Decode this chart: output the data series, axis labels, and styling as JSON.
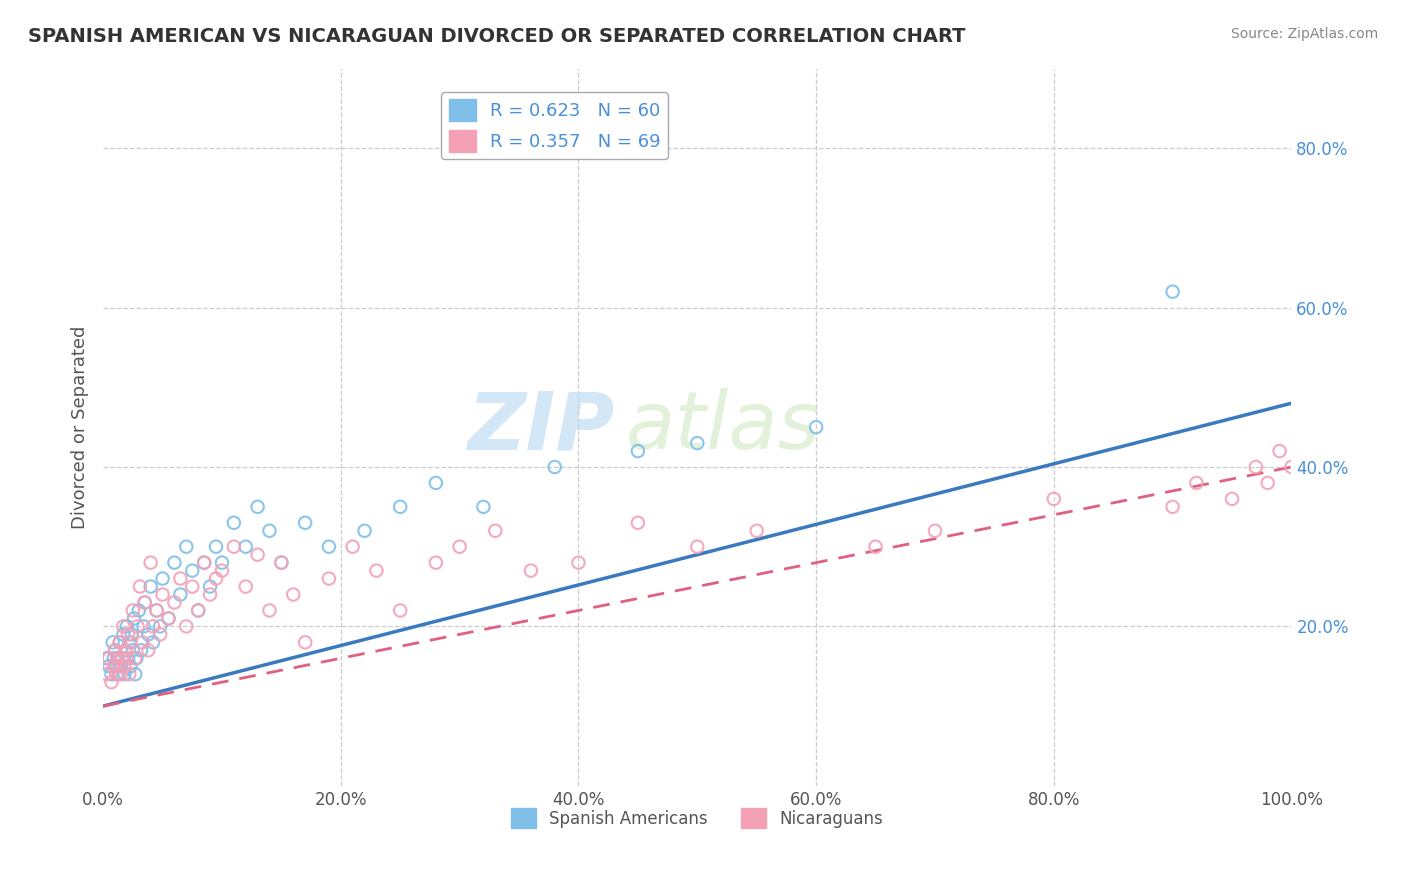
{
  "title": "SPANISH AMERICAN VS NICARAGUAN DIVORCED OR SEPARATED CORRELATION CHART",
  "source_text": "Source: ZipAtlas.com",
  "ylabel": "Divorced or Separated",
  "legend1_label": "R = 0.623   N = 60",
  "legend2_label": "R = 0.357   N = 69",
  "legend_bottom1": "Spanish Americans",
  "legend_bottom2": "Nicaraguans",
  "color_blue": "#7fbfea",
  "color_pink": "#f4a0b5",
  "color_blue_line": "#3a7abf",
  "color_pink_line": "#e06080",
  "watermark_zip": "ZIP",
  "watermark_atlas": "atlas",
  "xlim": [
    0.0,
    1.0
  ],
  "ylim": [
    0.0,
    0.9
  ],
  "xticks": [
    0.0,
    0.2,
    0.4,
    0.6,
    0.8,
    1.0
  ],
  "ytick_vals": [
    0.2,
    0.4,
    0.6,
    0.8
  ],
  "ytick_labels": [
    "20.0%",
    "40.0%",
    "60.0%",
    "80.0%"
  ],
  "blue_intercept": 0.1,
  "blue_slope": 0.38,
  "pink_intercept": 0.1,
  "pink_slope": 0.3,
  "blue_x": [
    0.003,
    0.005,
    0.007,
    0.008,
    0.009,
    0.01,
    0.011,
    0.012,
    0.013,
    0.014,
    0.015,
    0.016,
    0.017,
    0.018,
    0.019,
    0.02,
    0.021,
    0.022,
    0.023,
    0.024,
    0.025,
    0.026,
    0.027,
    0.028,
    0.03,
    0.032,
    0.034,
    0.035,
    0.038,
    0.04,
    0.042,
    0.045,
    0.048,
    0.05,
    0.055,
    0.06,
    0.065,
    0.07,
    0.075,
    0.08,
    0.085,
    0.09,
    0.095,
    0.1,
    0.11,
    0.12,
    0.13,
    0.14,
    0.15,
    0.17,
    0.19,
    0.22,
    0.25,
    0.28,
    0.32,
    0.38,
    0.45,
    0.5,
    0.6,
    0.9
  ],
  "blue_y": [
    0.16,
    0.15,
    0.14,
    0.18,
    0.16,
    0.17,
    0.15,
    0.16,
    0.14,
    0.18,
    0.15,
    0.16,
    0.19,
    0.14,
    0.17,
    0.2,
    0.16,
    0.18,
    0.15,
    0.19,
    0.17,
    0.21,
    0.14,
    0.16,
    0.22,
    0.17,
    0.2,
    0.23,
    0.19,
    0.25,
    0.18,
    0.22,
    0.2,
    0.26,
    0.21,
    0.28,
    0.24,
    0.3,
    0.27,
    0.22,
    0.28,
    0.25,
    0.3,
    0.28,
    0.33,
    0.3,
    0.35,
    0.32,
    0.28,
    0.33,
    0.3,
    0.32,
    0.35,
    0.38,
    0.35,
    0.4,
    0.42,
    0.43,
    0.45,
    0.62
  ],
  "pink_x": [
    0.003,
    0.005,
    0.007,
    0.009,
    0.01,
    0.011,
    0.012,
    0.013,
    0.014,
    0.015,
    0.016,
    0.017,
    0.018,
    0.019,
    0.02,
    0.021,
    0.022,
    0.023,
    0.025,
    0.027,
    0.029,
    0.031,
    0.033,
    0.035,
    0.038,
    0.04,
    0.042,
    0.045,
    0.048,
    0.05,
    0.055,
    0.06,
    0.065,
    0.07,
    0.075,
    0.08,
    0.085,
    0.09,
    0.095,
    0.1,
    0.11,
    0.12,
    0.13,
    0.14,
    0.15,
    0.16,
    0.17,
    0.19,
    0.21,
    0.23,
    0.25,
    0.28,
    0.3,
    0.33,
    0.36,
    0.4,
    0.45,
    0.5,
    0.55,
    0.65,
    0.7,
    0.8,
    0.9,
    0.92,
    0.95,
    0.97,
    0.98,
    0.99,
    1.0
  ],
  "pink_y": [
    0.14,
    0.16,
    0.13,
    0.15,
    0.17,
    0.14,
    0.16,
    0.15,
    0.18,
    0.14,
    0.16,
    0.2,
    0.15,
    0.17,
    0.16,
    0.19,
    0.14,
    0.18,
    0.22,
    0.16,
    0.2,
    0.25,
    0.18,
    0.23,
    0.17,
    0.28,
    0.2,
    0.22,
    0.19,
    0.24,
    0.21,
    0.23,
    0.26,
    0.2,
    0.25,
    0.22,
    0.28,
    0.24,
    0.26,
    0.27,
    0.3,
    0.25,
    0.29,
    0.22,
    0.28,
    0.24,
    0.18,
    0.26,
    0.3,
    0.27,
    0.22,
    0.28,
    0.3,
    0.32,
    0.27,
    0.28,
    0.33,
    0.3,
    0.32,
    0.3,
    0.32,
    0.36,
    0.35,
    0.38,
    0.36,
    0.4,
    0.38,
    0.42,
    0.4
  ]
}
